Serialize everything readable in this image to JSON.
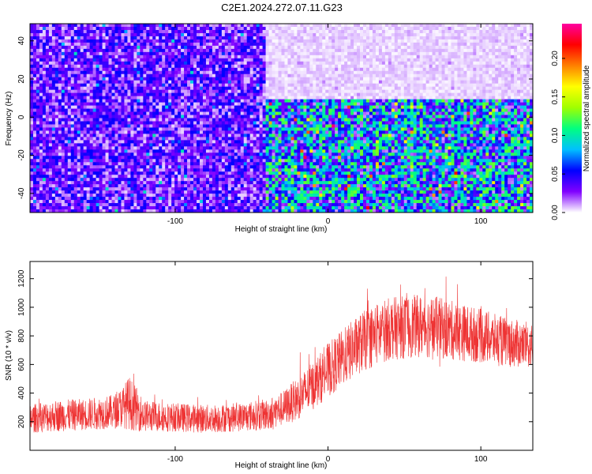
{
  "title": "C2E1.2024.272.07.11.G23",
  "chart_data": [
    {
      "type": "heatmap",
      "title": "C2E1.2024.272.07.11.G23",
      "xlabel": "Height of straight line (km)",
      "ylabel": "Frequency (Hz)",
      "xlim": [
        -195,
        134
      ],
      "ylim": [
        -50,
        49
      ],
      "xticks": [
        -100,
        0,
        100
      ],
      "yticks": [
        -40,
        -20,
        0,
        20,
        40
      ],
      "colorbar": {
        "label": "Normalized spectral amplitude",
        "range": [
          0,
          0.245
        ],
        "ticks": [
          0.0,
          0.05,
          0.1,
          0.15,
          0.2
        ],
        "tick_labels": [
          "0.00",
          "0.05",
          "0.10",
          "0.15",
          "0.20"
        ],
        "colormap": [
          "#ffffff",
          "#8000ff",
          "#0000ff",
          "#00c0ff",
          "#00ff80",
          "#a0ff00",
          "#ffff00",
          "#ff8000",
          "#ff0000",
          "#ff00a0"
        ]
      },
      "regions": [
        {
          "x": [
            -195,
            -40
          ],
          "freq": [
            -50,
            49
          ],
          "amplitude": 0.03
        },
        {
          "x": [
            -40,
            134
          ],
          "freq": [
            10,
            49
          ],
          "amplitude": 0.005
        },
        {
          "x": [
            -40,
            134
          ],
          "freq": [
            -50,
            10
          ],
          "amplitude": 0.07
        }
      ]
    },
    {
      "type": "line",
      "xlabel": "Height of straight line (km)",
      "ylabel": "SNR (10 * v/v)",
      "xlim": [
        -195,
        134
      ],
      "ylim": [
        0,
        1320
      ],
      "xticks": [
        -100,
        0,
        100
      ],
      "yticks": [
        200,
        400,
        600,
        800,
        1000,
        1200
      ],
      "color": "#ee3333",
      "series": [
        {
          "x": [
            -195,
            -180,
            -160,
            -140,
            -135,
            -130,
            -120,
            -100,
            -80,
            -60,
            -40,
            -30,
            -20,
            -10,
            0,
            10,
            20,
            30,
            40,
            50,
            60,
            70,
            80,
            90,
            100,
            110,
            120,
            134
          ],
          "y": [
            220,
            240,
            250,
            270,
            300,
            330,
            240,
            230,
            220,
            230,
            250,
            290,
            360,
            450,
            560,
            650,
            740,
            800,
            850,
            860,
            870,
            860,
            840,
            820,
            800,
            770,
            750,
            730
          ],
          "spread": [
            100,
            110,
            110,
            120,
            140,
            190,
            110,
            100,
            100,
            100,
            110,
            120,
            150,
            170,
            190,
            200,
            210,
            220,
            220,
            220,
            220,
            220,
            210,
            200,
            190,
            180,
            170,
            160
          ]
        }
      ]
    }
  ]
}
